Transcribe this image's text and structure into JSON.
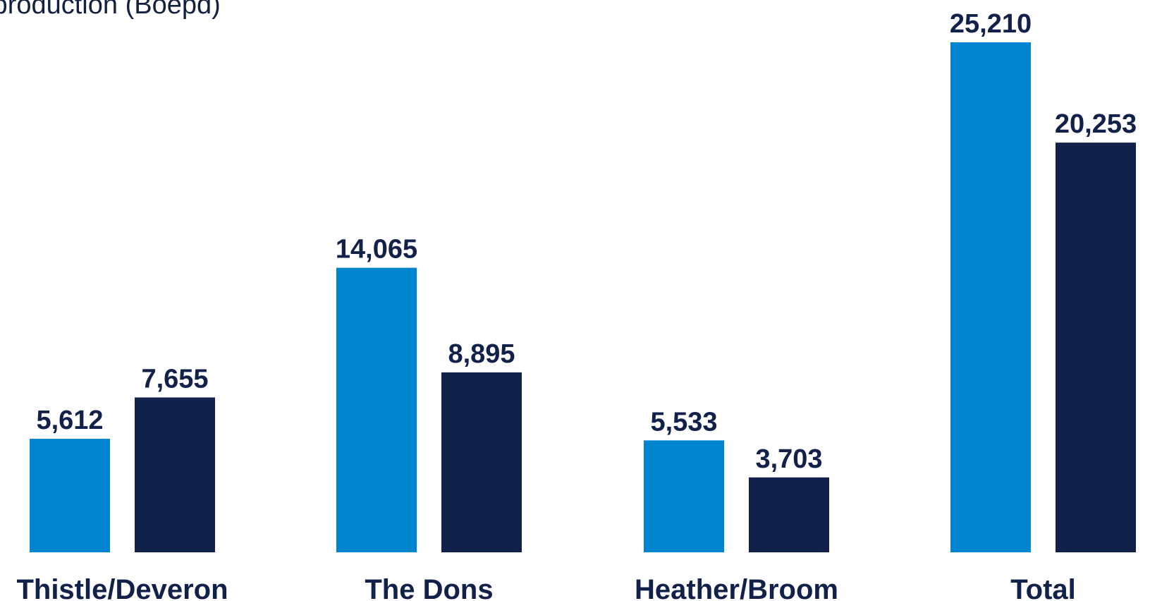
{
  "chart_data": {
    "type": "bar",
    "title": "k production (Boepd)",
    "categories": [
      "Thistle/Deveron",
      "The Dons",
      "Heather/Broom",
      "Total"
    ],
    "series": [
      {
        "color": "#0084d0",
        "values": [
          5612,
          14065,
          5533,
          25210
        ],
        "labels": [
          "5,612",
          "14,065",
          "5,533",
          "25,210"
        ]
      },
      {
        "color": "#12214a",
        "values": [
          7655,
          8895,
          3703,
          20253
        ],
        "labels": [
          "7,655",
          "8,895",
          "3,703",
          "20,253"
        ]
      }
    ],
    "xlabel": "",
    "ylabel": "",
    "ylim": [
      0,
      25210
    ],
    "grid": false
  }
}
